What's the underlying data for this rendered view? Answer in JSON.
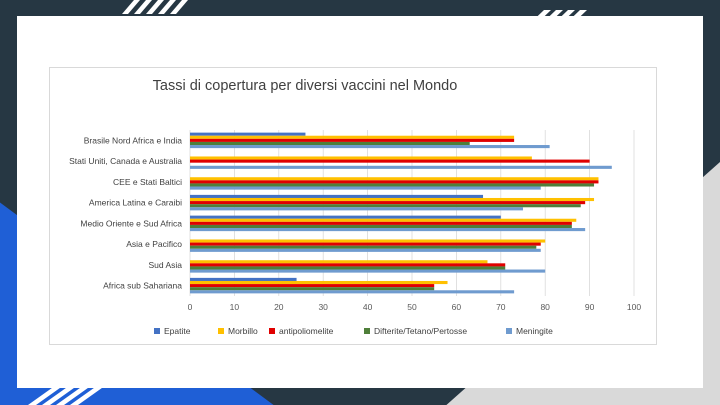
{
  "slide": {
    "background": "#263743",
    "accent_blue": "#1f5fd6"
  },
  "chart_data": {
    "type": "bar",
    "orientation": "horizontal",
    "title": "Tassi di copertura per diversi vaccini nel Mondo",
    "categories": [
      "Brasile Nord Africa e India",
      "Stati Uniti, Canada e Australia",
      "CEE e Stati Baltici",
      "America Latina e Caraibi",
      "Medio Oriente e Sud Africa",
      "Asia e Pacifico",
      "Sud Asia",
      "Africa sub Sahariana"
    ],
    "series": [
      {
        "name": "Epatite",
        "color": "#4472c4",
        "values": [
          26,
          0,
          0,
          66,
          70,
          0,
          0,
          24
        ]
      },
      {
        "name": "Morbillo",
        "color": "#ffc000",
        "values": [
          73,
          77,
          92,
          91,
          87,
          80,
          67,
          58
        ]
      },
      {
        "name": "antipoliomelite",
        "color": "#e00000",
        "values": [
          73,
          90,
          92,
          89,
          86,
          79,
          71,
          55
        ]
      },
      {
        "name": "Difterite/Tetano/Pertosse",
        "color": "#4f7f3a",
        "values": [
          63,
          0,
          91,
          88,
          86,
          78,
          71,
          55
        ]
      },
      {
        "name": "Meningite",
        "color": "#6f9bcf",
        "values": [
          81,
          95,
          79,
          75,
          89,
          79,
          80,
          73
        ]
      }
    ],
    "xlim": [
      0,
      100
    ],
    "xticks": [
      "0",
      "10",
      "20",
      "30",
      "40",
      "50",
      "60",
      "70",
      "80",
      "90",
      "100"
    ],
    "grid": true,
    "legend": "bottom"
  }
}
